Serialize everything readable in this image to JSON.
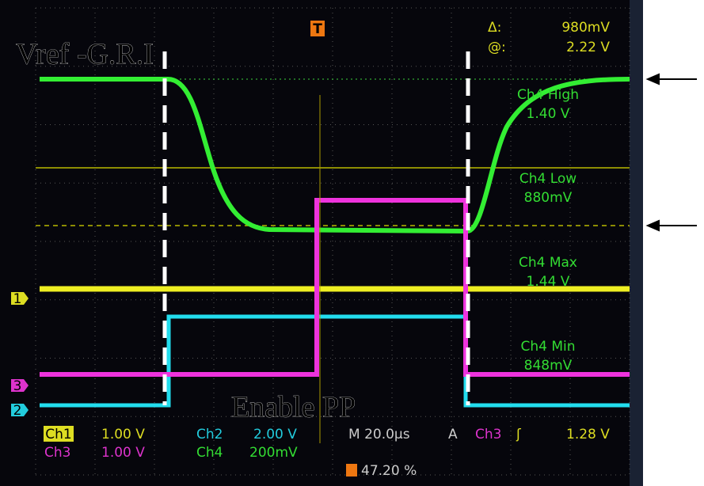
{
  "annotations": {
    "title": "Vref -G.R.I",
    "caption": "Enable PP"
  },
  "cursor": {
    "delta_label": "Δ:",
    "delta": "980mV",
    "at_label": "@:",
    "at": "2.22 V"
  },
  "measurements": [
    {
      "label": "Ch4 High",
      "value": "1.40 V"
    },
    {
      "label": "Ch4 Low",
      "value": "880mV"
    },
    {
      "label": "Ch4 Max",
      "value": "1.44 V"
    },
    {
      "label": "Ch4 Min",
      "value": "848mV"
    }
  ],
  "markers": {
    "ch1": "1",
    "ch3": "3",
    "ch2": "2",
    "trigger": "T"
  },
  "status": {
    "ch1": "Ch1",
    "ch1_scale": "1.00 V",
    "ch2": "Ch2",
    "ch2_scale": "2.00 V",
    "timebase": "M 20.0µs",
    "trigger_mode": "A",
    "trigger_source": "Ch3",
    "trigger_level": "1.28 V",
    "ch3": "Ch3",
    "ch3_scale": "1.00 V",
    "ch4": "Ch4",
    "ch4_scale": "200mV",
    "trigger_position": "47.20 %"
  }
}
